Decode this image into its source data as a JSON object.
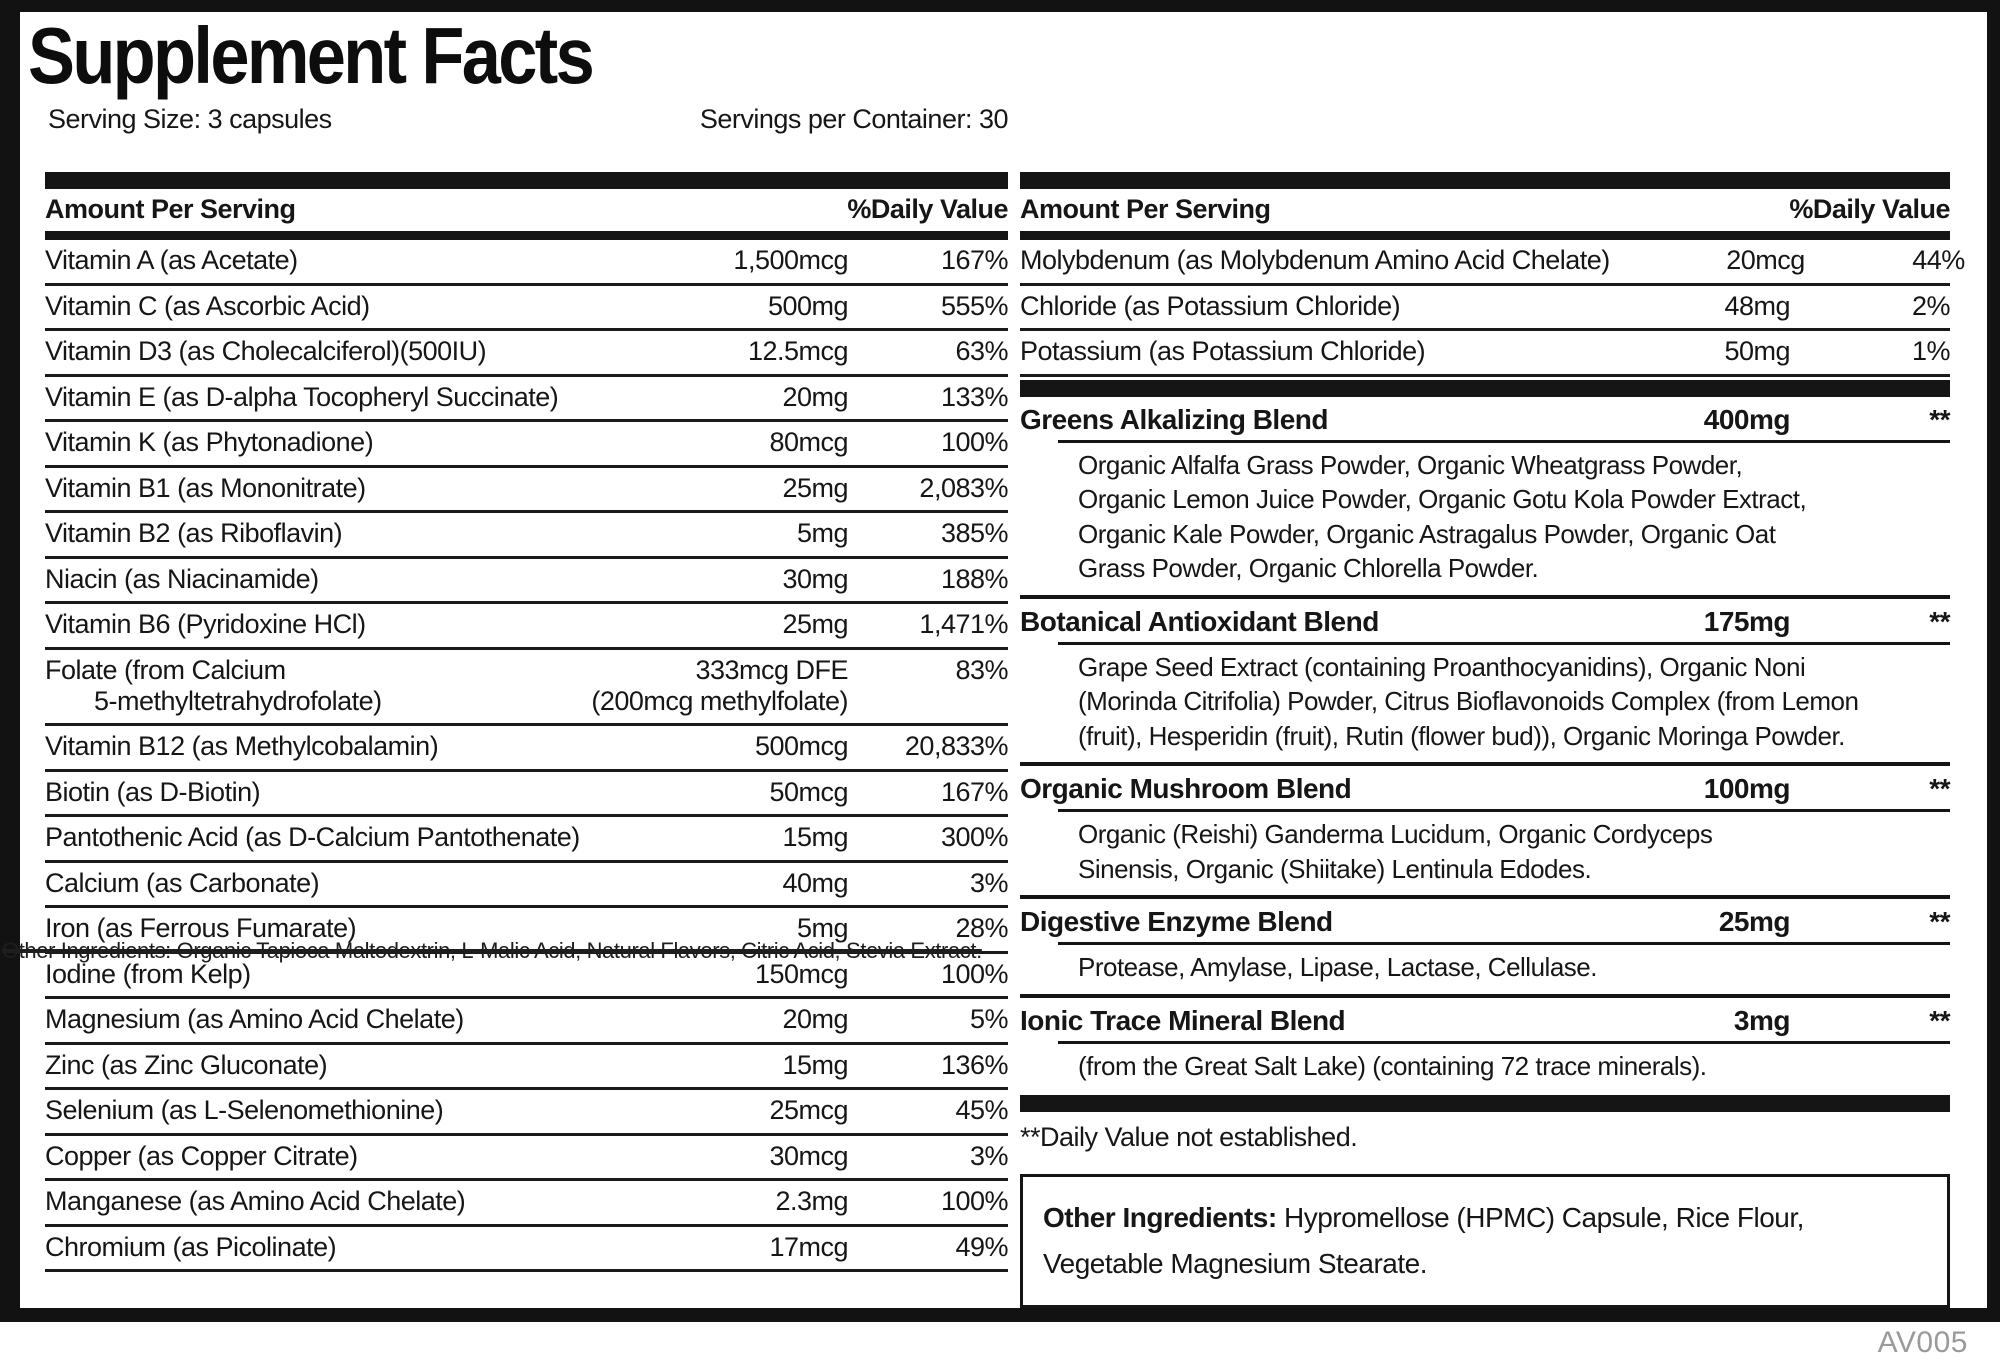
{
  "header": {
    "title": "Supplement Facts",
    "serving_size": "Serving Size: 3 capsules",
    "servings_per_container": "Servings per Container: 30"
  },
  "left_table": {
    "header": {
      "amount_label": "Amount Per Serving",
      "dv_label": "%Daily Value"
    },
    "rows": [
      {
        "name": "Vitamin A (as Acetate)",
        "amount": "1,500mcg",
        "dv": "167%"
      },
      {
        "name": "Vitamin C (as Ascorbic Acid)",
        "amount": "500mg",
        "dv": "555%"
      },
      {
        "name": "Vitamin D3 (as Cholecalciferol)(500IU)",
        "amount": "12.5mcg",
        "dv": "63%"
      },
      {
        "name": "Vitamin E (as D-alpha Tocopheryl Succinate)",
        "amount": "20mg",
        "dv": "133%"
      },
      {
        "name": "Vitamin K (as Phytonadione)",
        "amount": "80mcg",
        "dv": "100%"
      },
      {
        "name": "Vitamin B1 (as Mononitrate)",
        "amount": "25mg",
        "dv": "2,083%"
      },
      {
        "name": "Vitamin B2 (as Riboflavin)",
        "amount": "5mg",
        "dv": "385%"
      },
      {
        "name": "Niacin (as Niacinamide)",
        "amount": "30mg",
        "dv": "188%"
      },
      {
        "name": "Vitamin B6 (Pyridoxine HCl)",
        "amount": "25mg",
        "dv": "1,471%"
      },
      {
        "name": "Folate (from Calcium\n       5-methyltetrahydrofolate)",
        "amount": "333mcg DFE\n(200mcg methylfolate)",
        "dv": "83%"
      },
      {
        "name": "Vitamin B12 (as Methylcobalamin)",
        "amount": "500mcg",
        "dv": "20,833%"
      },
      {
        "name": "Biotin (as D-Biotin)",
        "amount": "50mcg",
        "dv": "167%"
      },
      {
        "name": "Pantothenic Acid (as D-Calcium Pantothenate)",
        "amount": "15mg",
        "dv": "300%"
      },
      {
        "name": "Calcium (as Carbonate)",
        "amount": "40mg",
        "dv": "3%"
      },
      {
        "name": "Iron (as Ferrous Fumarate)",
        "amount": "5mg",
        "dv": "28%"
      },
      {
        "name": "Iodine (from Kelp)",
        "amount": "150mcg",
        "dv": "100%"
      },
      {
        "name": "Magnesium (as Amino Acid Chelate)",
        "amount": "20mg",
        "dv": "5%"
      },
      {
        "name": "Zinc (as Zinc Gluconate)",
        "amount": "15mg",
        "dv": "136%"
      },
      {
        "name": "Selenium (as L-Selenomethionine)",
        "amount": "25mcg",
        "dv": "45%"
      },
      {
        "name": "Copper (as Copper Citrate)",
        "amount": "30mcg",
        "dv": "3%"
      },
      {
        "name": "Manganese (as Amino Acid Chelate)",
        "amount": "2.3mg",
        "dv": "100%"
      },
      {
        "name": "Chromium (as Picolinate)",
        "amount": "17mcg",
        "dv": "49%"
      }
    ]
  },
  "overlay": {
    "strikethrough_text": "Other Ingredients: Organic Tapioca Maltodextrin, L-Malic Acid, Natural Flavors, Citric Acid, Stevia Extract."
  },
  "right_table": {
    "header": {
      "amount_label": "Amount Per Serving",
      "dv_label": "%Daily Value"
    },
    "rows": [
      {
        "name": "Molybdenum (as Molybdenum Amino Acid Chelate)",
        "amount": "20mcg",
        "dv": "44%"
      },
      {
        "name": "Chloride (as Potassium Chloride)",
        "amount": "48mg",
        "dv": "2%"
      },
      {
        "name": "Potassium (as Potassium Chloride)",
        "amount": "50mg",
        "dv": "1%"
      }
    ],
    "blends": [
      {
        "name": "Greens Alkalizing Blend",
        "amount": "400mg",
        "dv": "**",
        "ingredients": "Organic Alfalfa Grass Powder, Organic Wheatgrass Powder,\nOrganic Lemon Juice Powder, Organic Gotu Kola Powder Extract,\nOrganic Kale Powder, Organic Astragalus Powder, Organic Oat\nGrass Powder, Organic Chlorella Powder."
      },
      {
        "name": "Botanical Antioxidant Blend",
        "amount": "175mg",
        "dv": "**",
        "ingredients": "Grape Seed Extract (containing Proanthocyanidins), Organic Noni\n(Morinda Citrifolia) Powder, Citrus Bioflavonoids Complex (from Lemon\n(fruit), Hesperidin (fruit), Rutin (flower bud)), Organic Moringa Powder."
      },
      {
        "name": "Organic Mushroom Blend",
        "amount": "100mg",
        "dv": "**",
        "ingredients": "Organic (Reishi) Ganderma Lucidum, Organic Cordyceps\nSinensis, Organic (Shiitake) Lentinula Edodes."
      },
      {
        "name": "Digestive Enzyme Blend",
        "amount": "25mg",
        "dv": "**",
        "ingredients": "Protease, Amylase, Lipase, Lactase, Cellulase."
      },
      {
        "name": "Ionic Trace Mineral Blend",
        "amount": "3mg",
        "dv": "**",
        "ingredients": "(from the Great Salt Lake) (containing 72 trace minerals)."
      }
    ],
    "footnote": "**Daily Value not established.",
    "other_ingredients": {
      "label": "Other Ingredients:",
      "text": " Hypromellose (HPMC) Capsule, Rice Flour,\nVegetable Magnesium Stearate."
    }
  },
  "footer": {
    "code": "AV005"
  }
}
